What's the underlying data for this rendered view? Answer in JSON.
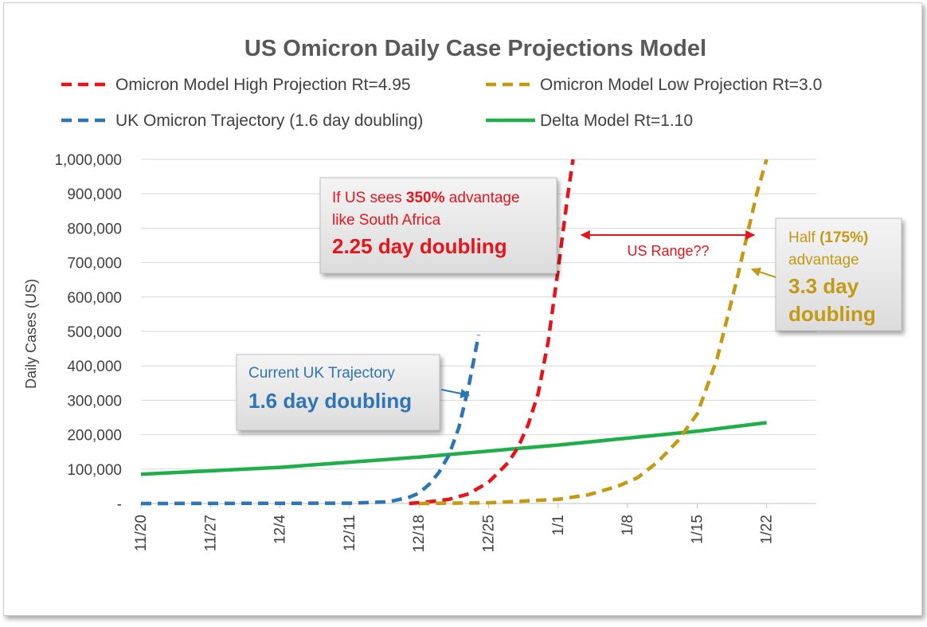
{
  "chart_data": {
    "type": "line",
    "title": "US Omicron Daily Case Projections Model",
    "ylabel": "Daily Cases (US)",
    "xlabel": "",
    "ylim": [
      0,
      1000000
    ],
    "xlim": [
      "2021-11-20",
      "2022-01-27"
    ],
    "y_ticks": [
      0,
      100000,
      200000,
      300000,
      400000,
      500000,
      600000,
      700000,
      800000,
      900000,
      1000000
    ],
    "y_tick_labels": [
      "-",
      "100,000",
      "200,000",
      "300,000",
      "400,000",
      "500,000",
      "600,000",
      "700,000",
      "800,000",
      "900,000",
      "1,000,000"
    ],
    "x_ticks": [
      "2021-11-20",
      "2021-11-27",
      "2021-12-04",
      "2021-12-11",
      "2021-12-18",
      "2021-12-25",
      "2022-01-01",
      "2022-01-08",
      "2022-01-15",
      "2022-01-22"
    ],
    "x_tick_labels": [
      "11/20",
      "11/27",
      "12/4",
      "12/11",
      "12/18",
      "12/25",
      "1/1",
      "1/8",
      "1/15",
      "1/22"
    ],
    "grid": "horizontal",
    "legend_position": "top",
    "series": [
      {
        "name": "Omicron Model High Projection Rt=4.95",
        "color": "#e8141c",
        "style": "dashed",
        "points": [
          [
            "2021-12-17",
            0
          ],
          [
            "2021-12-19",
            5000
          ],
          [
            "2021-12-21",
            12000
          ],
          [
            "2021-12-23",
            28000
          ],
          [
            "2021-12-25",
            62000
          ],
          [
            "2021-12-26",
            90000
          ],
          [
            "2021-12-27",
            120000
          ],
          [
            "2021-12-28",
            165000
          ],
          [
            "2021-12-29",
            230000
          ],
          [
            "2021-12-30",
            320000
          ],
          [
            "2021-12-31",
            470000
          ],
          [
            "2022-01-01",
            680000
          ],
          [
            "2022-01-02",
            900000
          ],
          [
            "2022-01-02.5",
            1000000
          ]
        ]
      },
      {
        "name": "Omicron Model Low Projection Rt=3.0",
        "color": "#c49a14",
        "style": "dashed",
        "points": [
          [
            "2021-12-18",
            0
          ],
          [
            "2021-12-25",
            2000
          ],
          [
            "2022-01-01",
            12000
          ],
          [
            "2022-01-04",
            25000
          ],
          [
            "2022-01-07",
            50000
          ],
          [
            "2022-01-09",
            75000
          ],
          [
            "2022-01-11",
            120000
          ],
          [
            "2022-01-13",
            180000
          ],
          [
            "2022-01-15",
            260000
          ],
          [
            "2022-01-17",
            420000
          ],
          [
            "2022-01-19",
            650000
          ],
          [
            "2022-01-21",
            900000
          ],
          [
            "2022-01-22",
            1000000
          ]
        ]
      },
      {
        "name": "UK Omicron Trajectory (1.6 day doubling)",
        "color": "#2e75b6",
        "style": "dashed",
        "points": [
          [
            "2021-11-20",
            0
          ],
          [
            "2021-12-11",
            1000
          ],
          [
            "2021-12-15",
            5000
          ],
          [
            "2021-12-17",
            18000
          ],
          [
            "2021-12-18",
            30000
          ],
          [
            "2021-12-19",
            55000
          ],
          [
            "2021-12-20",
            90000
          ],
          [
            "2021-12-21",
            140000
          ],
          [
            "2021-12-22",
            220000
          ],
          [
            "2021-12-23",
            340000
          ],
          [
            "2021-12-24",
            490000
          ]
        ]
      },
      {
        "name": "Delta Model Rt=1.10",
        "color": "#1fae4a",
        "style": "solid",
        "points": [
          [
            "2021-11-20",
            85000
          ],
          [
            "2021-12-04",
            105000
          ],
          [
            "2021-12-18",
            135000
          ],
          [
            "2022-01-01",
            170000
          ],
          [
            "2022-01-15",
            210000
          ],
          [
            "2022-01-22",
            235000
          ]
        ]
      }
    ],
    "annotations": [
      {
        "id": "high",
        "color": "#e8141c",
        "line1_pre": "If US sees ",
        "line1_bold": "350%",
        "line1_post": " advantage",
        "line2": "like South Africa",
        "headline": "2.25 day doubling"
      },
      {
        "id": "low",
        "color": "#c49a14",
        "line1_pre": "Half ",
        "line1_bold": "(175%)",
        "line2": "advantage",
        "headline_1": "3.3 day",
        "headline_2": "doubling"
      },
      {
        "id": "uk",
        "color": "#2e75b6",
        "line1": "Current UK Trajectory",
        "headline": "1.6 day doubling"
      },
      {
        "id": "range",
        "color": "#e8141c",
        "text": "US Range??"
      }
    ]
  }
}
